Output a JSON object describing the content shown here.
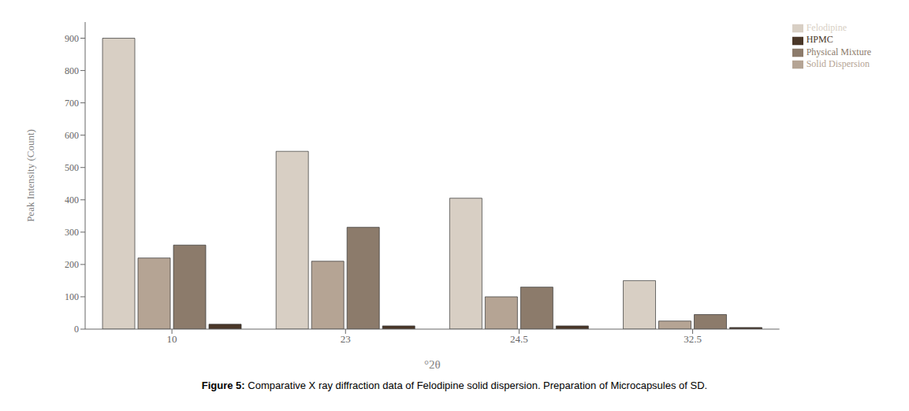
{
  "chart_data": {
    "type": "bar",
    "categories": [
      "10",
      "23",
      "24.5",
      "32.5"
    ],
    "series": [
      {
        "name": "Felodipine",
        "color": "#d8cfc4",
        "values": [
          900,
          550,
          405,
          150
        ]
      },
      {
        "name": "Solid Dispersion",
        "color": "#b5a494",
        "values": [
          220,
          210,
          100,
          25
        ]
      },
      {
        "name": "Physical Mixture",
        "color": "#8c7b6b",
        "values": [
          260,
          315,
          130,
          45
        ]
      },
      {
        "name": "HPMC",
        "color": "#4a3728",
        "values": [
          15,
          10,
          10,
          5
        ]
      }
    ],
    "ylabel": "Peak Intensity (Count)",
    "xlabel": "°2θ",
    "ylim": [
      0,
      950
    ],
    "yticks": [
      0,
      100,
      200,
      300,
      400,
      500,
      600,
      700,
      800,
      900
    ],
    "grid": false,
    "legend": "upper right",
    "annotations": [
      "Figure 5:",
      "Comparative X ray diffraction data of Felodipine solid dispersion. Preparation of Microcapsules of SD."
    ]
  }
}
